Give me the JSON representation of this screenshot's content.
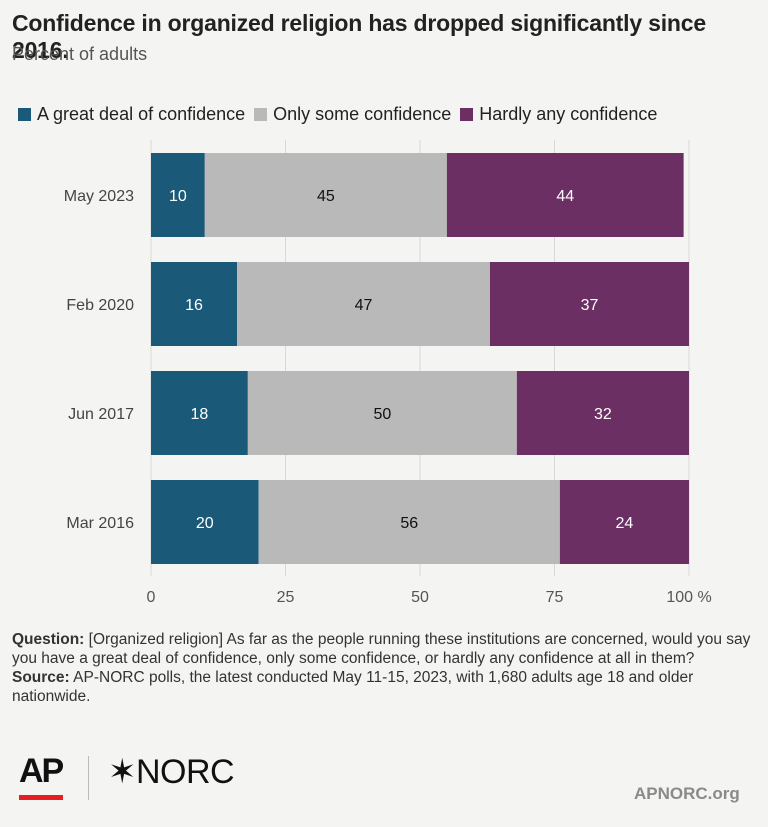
{
  "title": "Confidence in organized religion has dropped significantly since 2016.",
  "subtitle": "Percent of adults",
  "chart_data": {
    "type": "bar",
    "orientation": "horizontal",
    "stacked": true,
    "categories": [
      "May 2023",
      "Feb 2020",
      "Jun 2017",
      "Mar 2016"
    ],
    "series": [
      {
        "name": "A great deal of confidence",
        "color": "#1a5a78",
        "values": [
          10,
          16,
          18,
          20
        ]
      },
      {
        "name": "Only some confidence",
        "color": "#b9b9b9",
        "values": [
          45,
          47,
          50,
          56
        ]
      },
      {
        "name": "Hardly any confidence",
        "color": "#6b2f63",
        "values": [
          44,
          37,
          32,
          24
        ]
      }
    ],
    "xlim": [
      0,
      100
    ],
    "xticks": [
      0,
      25,
      50,
      75,
      100
    ],
    "xtick_suffix": " %",
    "grid": true,
    "legend_position": "top-left",
    "data_labels": true
  },
  "footer": {
    "question_label": "Question:",
    "question_text": "[Organized religion] As far as the people running these institutions are concerned, would you say you have  a great deal of confidence, only some confidence, or hardly any confidence at all in them?",
    "source_label": "Source:",
    "source_text": "AP-NORC polls, the latest conducted May 11-15, 2023, with 1,680 adults age 18 and older nationwide."
  },
  "logos": {
    "ap": "AP",
    "norc": "NORC"
  },
  "site": "APNORC.org"
}
